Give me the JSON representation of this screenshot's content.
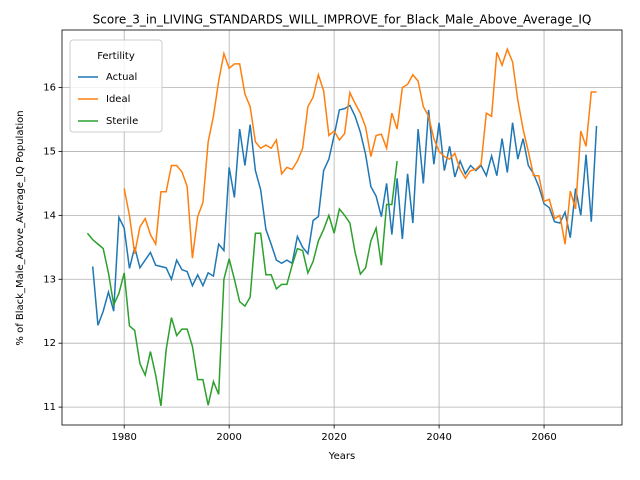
{
  "chart_data": {
    "type": "line",
    "title": "Score_3_in_LIVING_STANDARDS_WILL_IMPROVE_for_Black_Male_Above_Average_IQ",
    "xlabel": "Years",
    "ylabel": "% of Black_Male_Above_Average_IQ Population",
    "x": [
      1973,
      1974,
      1975,
      1976,
      1977,
      1978,
      1979,
      1980,
      1981,
      1982,
      1983,
      1984,
      1985,
      1986,
      1987,
      1988,
      1989,
      1990,
      1991,
      1992,
      1993,
      1994,
      1995,
      1996,
      1997,
      1998,
      1999,
      2000,
      2001,
      2002,
      2003,
      2004,
      2005,
      2006,
      2007,
      2008,
      2009,
      2010,
      2011,
      2012,
      2013,
      2014,
      2015,
      2016,
      2017,
      2018,
      2019,
      2020,
      2021,
      2022,
      2023,
      2024,
      2025,
      2026,
      2027,
      2028,
      2029,
      2030,
      2031,
      2032,
      2033,
      2034,
      2035,
      2036,
      2037,
      2038,
      2039,
      2040,
      2041,
      2042,
      2043,
      2044,
      2045,
      2046,
      2047,
      2048,
      2049,
      2050,
      2051,
      2052,
      2053,
      2054,
      2055,
      2056,
      2057,
      2058,
      2059,
      2060,
      2061,
      2062,
      2063,
      2064,
      2065,
      2066,
      2067,
      2068,
      2069,
      2070
    ],
    "series": [
      {
        "name": "Actual",
        "color": "#1f77b4",
        "values": [
          null,
          13.2,
          12.28,
          12.5,
          12.8,
          12.5,
          13.97,
          13.8,
          13.17,
          13.5,
          13.18,
          13.3,
          13.42,
          13.22,
          13.2,
          13.18,
          13.0,
          13.3,
          13.15,
          13.12,
          12.9,
          13.07,
          12.9,
          13.1,
          13.05,
          13.55,
          13.45,
          14.75,
          14.28,
          15.35,
          14.78,
          15.42,
          14.7,
          14.4,
          13.78,
          13.55,
          13.3,
          13.25,
          13.3,
          13.25,
          13.67,
          13.5,
          13.4,
          13.92,
          13.98,
          14.7,
          14.88,
          15.25,
          15.65,
          15.67,
          15.72,
          15.55,
          15.3,
          14.95,
          14.45,
          14.3,
          13.98,
          14.5,
          13.7,
          14.58,
          13.63,
          14.65,
          13.88,
          15.35,
          14.5,
          15.65,
          14.8,
          15.45,
          14.7,
          15.08,
          14.6,
          14.85,
          14.65,
          14.78,
          14.7,
          14.78,
          14.62,
          14.93,
          14.62,
          15.2,
          14.67,
          15.45,
          14.88,
          15.2,
          14.78,
          14.65,
          14.45,
          14.18,
          14.12,
          13.9,
          13.88,
          14.05,
          13.65,
          14.42,
          14.0,
          14.95,
          13.9,
          15.4
        ]
      },
      {
        "name": "Ideal",
        "color": "#ff7f0e",
        "values": [
          null,
          null,
          null,
          null,
          null,
          null,
          null,
          14.42,
          14.0,
          13.4,
          13.82,
          13.95,
          13.7,
          13.55,
          14.37,
          14.37,
          14.78,
          14.78,
          14.68,
          14.45,
          13.33,
          13.98,
          14.2,
          15.15,
          15.55,
          16.1,
          16.53,
          16.3,
          16.37,
          16.37,
          15.9,
          15.7,
          15.15,
          15.05,
          15.1,
          15.05,
          15.18,
          14.65,
          14.75,
          14.72,
          14.85,
          15.05,
          15.7,
          15.85,
          16.2,
          15.95,
          15.25,
          15.32,
          15.18,
          15.28,
          15.92,
          15.75,
          15.6,
          15.38,
          14.92,
          15.25,
          15.27,
          15.05,
          15.6,
          15.35,
          16.0,
          16.05,
          16.2,
          16.1,
          15.7,
          15.55,
          15.2,
          15.0,
          14.92,
          14.88,
          14.97,
          14.72,
          14.58,
          14.7,
          14.72,
          14.8,
          15.6,
          15.55,
          16.55,
          16.35,
          16.6,
          16.4,
          15.8,
          15.35,
          15.0,
          14.62,
          14.62,
          14.22,
          14.25,
          13.95,
          14.0,
          13.55,
          14.38,
          14.1,
          15.32,
          15.08,
          15.93,
          15.93
        ]
      },
      {
        "name": "Sterile",
        "color": "#2ca02c",
        "values": [
          13.72,
          13.62,
          13.55,
          13.48,
          13.1,
          12.6,
          12.78,
          13.1,
          12.27,
          12.2,
          11.68,
          11.5,
          11.87,
          11.5,
          11.02,
          11.9,
          12.4,
          12.12,
          12.22,
          12.22,
          11.95,
          11.43,
          11.43,
          11.03,
          11.4,
          11.2,
          13.0,
          13.32,
          13.0,
          12.65,
          12.58,
          12.72,
          13.72,
          13.72,
          13.07,
          13.07,
          12.85,
          12.92,
          12.92,
          13.22,
          13.48,
          13.45,
          13.1,
          13.28,
          13.6,
          13.78,
          14.0,
          13.72,
          14.1,
          14.0,
          13.88,
          13.42,
          13.08,
          13.18,
          13.6,
          13.8,
          13.22,
          14.17,
          14.17,
          14.85,
          null,
          null,
          null,
          null,
          null,
          null,
          null,
          null,
          null,
          null,
          null,
          null,
          null,
          null,
          null,
          null,
          null,
          null,
          null,
          null,
          null,
          null,
          null,
          null,
          null,
          null,
          null,
          null,
          null,
          null,
          null,
          null,
          null,
          null,
          null,
          null,
          null,
          null
        ]
      }
    ],
    "xlim": [
      1968.15,
      2074.85
    ],
    "xticks": [
      1980,
      2000,
      2020,
      2040,
      2060
    ],
    "ylim": [
      10.72,
      16.9
    ],
    "yticks": [
      11,
      12,
      13,
      14,
      15,
      16
    ],
    "grid": true,
    "legend_title": "Fertility",
    "legend": "upper left"
  }
}
